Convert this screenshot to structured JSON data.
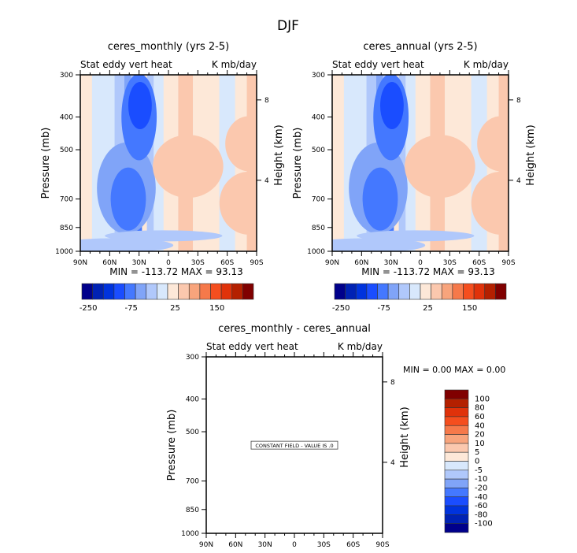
{
  "page_title": "DJF",
  "chart_data": [
    {
      "type": "heatmap",
      "id": "monthly",
      "title": "ceres_monthly (yrs 2-5)",
      "subtitle_left": "Stat eddy vert heat",
      "subtitle_right": "K mb/day",
      "xlabel": "",
      "ylabel": "Pressure (mb)",
      "y2label": "Height (km)",
      "x_ticks": [
        "90N",
        "60N",
        "30N",
        "0",
        "30S",
        "60S",
        "90S"
      ],
      "x_range": [
        90,
        -90
      ],
      "y_ticks": [
        "300",
        "400",
        "500",
        "700",
        "850",
        "1000"
      ],
      "y_range": [
        300,
        1000
      ],
      "y2_ticks": [
        "8",
        "4"
      ],
      "stats": "MIN = -113.72   MAX =   93.13",
      "min": -113.72,
      "max": 93.13,
      "colorbar": {
        "orientation": "horizontal",
        "tick_labels": [
          "-250",
          "-75",
          "25",
          "150"
        ],
        "colors": [
          "#00008b",
          "#0022b4",
          "#0033dd",
          "#1a4dff",
          "#4478ff",
          "#80a4f8",
          "#b0c8fb",
          "#d8e8fc",
          "#fde8d8",
          "#fbc8ae",
          "#f8a47c",
          "#f6794a",
          "#f54e1e",
          "#e0320a",
          "#b42000",
          "#800000"
        ]
      }
    },
    {
      "type": "heatmap",
      "id": "annual",
      "title": "ceres_annual (yrs 2-5)",
      "subtitle_left": "Stat eddy vert heat",
      "subtitle_right": "K mb/day",
      "xlabel": "",
      "ylabel": "Pressure (mb)",
      "y2label": "Height (km)",
      "x_ticks": [
        "90N",
        "60N",
        "30N",
        "0",
        "30S",
        "60S",
        "90S"
      ],
      "x_range": [
        90,
        -90
      ],
      "y_ticks": [
        "300",
        "400",
        "500",
        "700",
        "850",
        "1000"
      ],
      "y_range": [
        300,
        1000
      ],
      "y2_ticks": [
        "8",
        "4"
      ],
      "stats": "MIN = -113.72   MAX =   93.13",
      "min": -113.72,
      "max": 93.13,
      "colorbar": {
        "orientation": "horizontal",
        "tick_labels": [
          "-250",
          "-75",
          "25",
          "150"
        ],
        "colors": [
          "#00008b",
          "#0022b4",
          "#0033dd",
          "#1a4dff",
          "#4478ff",
          "#80a4f8",
          "#b0c8fb",
          "#d8e8fc",
          "#fde8d8",
          "#fbc8ae",
          "#f8a47c",
          "#f6794a",
          "#f54e1e",
          "#e0320a",
          "#b42000",
          "#800000"
        ]
      }
    },
    {
      "type": "heatmap",
      "id": "diff",
      "title": "ceres_monthly - ceres_annual",
      "subtitle_left": "Stat eddy vert heat",
      "subtitle_right": "K mb/day",
      "xlabel": "",
      "ylabel": "Pressure (mb)",
      "y2label": "Height (km)",
      "x_ticks": [
        "90N",
        "60N",
        "30N",
        "0",
        "30S",
        "60S",
        "90S"
      ],
      "x_range": [
        90,
        -90
      ],
      "y_ticks": [
        "300",
        "400",
        "500",
        "700",
        "850",
        "1000"
      ],
      "y_range": [
        300,
        1000
      ],
      "y2_ticks": [
        "8",
        "4"
      ],
      "stats": "MIN =    0.00   MAX =    0.00",
      "min": 0.0,
      "max": 0.0,
      "annotation": "CONSTANT FIELD - VALUE IS .0",
      "colorbar": {
        "orientation": "vertical",
        "tick_labels": [
          "100",
          "80",
          "60",
          "40",
          "20",
          "10",
          "5",
          "0",
          "-5",
          "-10",
          "-20",
          "-40",
          "-60",
          "-80",
          "-100"
        ],
        "colors": [
          "#800000",
          "#b42000",
          "#e0320a",
          "#f54e1e",
          "#f6794a",
          "#f8a47c",
          "#fbc8ae",
          "#fde8d8",
          "#d8e8fc",
          "#b0c8fb",
          "#80a4f8",
          "#4478ff",
          "#1a4dff",
          "#0033dd",
          "#0022b4",
          "#00008b"
        ]
      }
    }
  ],
  "field_pattern": {
    "description": "latitude-pressure contour of stationary eddy vertical heat flux (approximate, both top panels identical)",
    "bands": [
      {
        "lat_from": 90,
        "lat_to": 78,
        "level": 0
      },
      {
        "lat_from": 78,
        "lat_to": 55,
        "level": -1
      },
      {
        "lat_from": 55,
        "lat_to": 45,
        "level": -2
      },
      {
        "lat_from": 45,
        "lat_to": 38,
        "level": -3
      },
      {
        "lat_from": 38,
        "lat_to": 33,
        "level": -2
      },
      {
        "lat_from": 33,
        "lat_to": 27,
        "level": -4
      },
      {
        "lat_from": 27,
        "lat_to": 22,
        "level": 0
      },
      {
        "lat_from": 22,
        "lat_to": 15,
        "level": -2
      },
      {
        "lat_from": 15,
        "lat_to": 5,
        "level": -1
      },
      {
        "lat_from": 5,
        "lat_to": -10,
        "level": 0
      },
      {
        "lat_from": -10,
        "lat_to": -25,
        "level": 1
      },
      {
        "lat_from": -25,
        "lat_to": -45,
        "level": 0
      },
      {
        "lat_from": -45,
        "lat_to": -52,
        "level": 0
      },
      {
        "lat_from": -52,
        "lat_to": -68,
        "level": -1
      },
      {
        "lat_from": -68,
        "lat_to": -80,
        "level": 0
      },
      {
        "lat_from": -80,
        "lat_to": -90,
        "level": 1
      }
    ]
  }
}
